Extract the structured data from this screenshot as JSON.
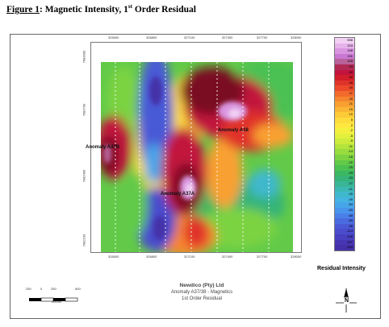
{
  "figure": {
    "label": "Figure 1",
    "title_before_sup": ": Magnetic Intensity, 1",
    "sup": "st",
    "title_after_sup": " Order Residual"
  },
  "map": {
    "x_ticks": [
      "326500",
      "326800",
      "327100",
      "327400",
      "327700",
      "328000"
    ],
    "y_ticks_left": [
      "7983000",
      "7982700",
      "7982400",
      "7982100"
    ],
    "y_ticks_right": [
      "7983000",
      "7982700",
      "7982400",
      "7982100"
    ],
    "anomalies": [
      {
        "label": "Anomaly A37B"
      },
      {
        "label": "Anomaly A38"
      },
      {
        "label": "Anomaly A37A"
      }
    ]
  },
  "legend": {
    "title": "Residual Intensity",
    "values": [
      "598",
      "203",
      "158",
      "131",
      "109",
      "93",
      "80",
      "68",
      "58",
      "48",
      "37",
      "28",
      "21",
      "15",
      "10",
      "5",
      "2",
      "-2",
      "-5",
      "-9",
      "-11",
      "-14",
      "-18",
      "-22",
      "-25",
      "-29",
      "-33",
      "-37",
      "-41",
      "-45",
      "-49",
      "-54",
      "-60",
      "-68",
      "-80",
      "-98",
      "-113",
      "-126",
      "-157",
      "-203"
    ],
    "colors": [
      "#f2d0f4",
      "#e6b3ea",
      "#d995e0",
      "#c977d2",
      "#b8629a",
      "#b02a54",
      "#c2143c",
      "#d21e2a",
      "#e0332a",
      "#ec4a2a",
      "#f26a2c",
      "#f6862e",
      "#f9a030",
      "#fbb634",
      "#fdca38",
      "#fedc3c",
      "#ffe840",
      "#f4ef3e",
      "#e2f03c",
      "#cdeb3c",
      "#b4e43c",
      "#98dc3e",
      "#7cd342",
      "#62ca48",
      "#4cc152",
      "#3cb862",
      "#36b478",
      "#38b696",
      "#3cb8b4",
      "#40b8cc",
      "#44b4e0",
      "#46a6ea",
      "#4894ec",
      "#4a7fe8",
      "#4a6ce0",
      "#4a5ad6",
      "#4a4ccc",
      "#4840c0",
      "#4636b4",
      "#4430a8"
    ]
  },
  "info": {
    "company": "Newdico (Pty) Ltd",
    "line1": "Anomaly A37/38 - Magnetics",
    "line2": "1st Order Residual"
  },
  "scale": {
    "ticks": [
      "250",
      "0",
      "250",
      "500"
    ],
    "unit": "metres"
  },
  "north": {
    "label": "N"
  },
  "colors": {
    "high": "#7a0c20",
    "mid_high": "#e0332a",
    "mid": "#fedc3c",
    "low": "#3cb862",
    "very_low": "#4a5ad6"
  }
}
